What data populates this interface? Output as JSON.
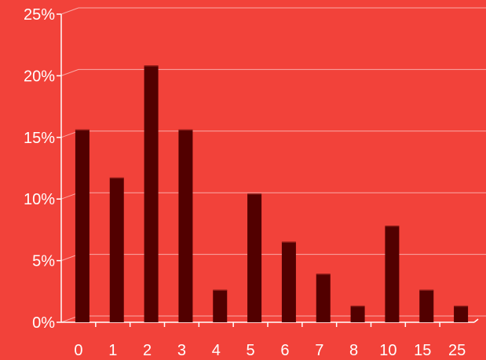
{
  "chart_data": {
    "type": "bar",
    "title": "",
    "xlabel": "",
    "ylabel": "",
    "categories": [
      "0",
      "1",
      "2",
      "3",
      "4",
      "5",
      "6",
      "7",
      "8",
      "10",
      "15",
      "25"
    ],
    "values": [
      15.6,
      11.7,
      20.8,
      15.6,
      2.6,
      10.4,
      6.5,
      3.9,
      1.3,
      7.8,
      2.6,
      1.3
    ],
    "ylim": [
      0,
      25
    ],
    "yticks": [
      "0%",
      "5%",
      "10%",
      "15%",
      "20%",
      "25%"
    ],
    "grid": true,
    "legend": "none",
    "colors": {
      "background": "#f2423a",
      "bar": "#520000",
      "text": "#ffffff"
    }
  }
}
